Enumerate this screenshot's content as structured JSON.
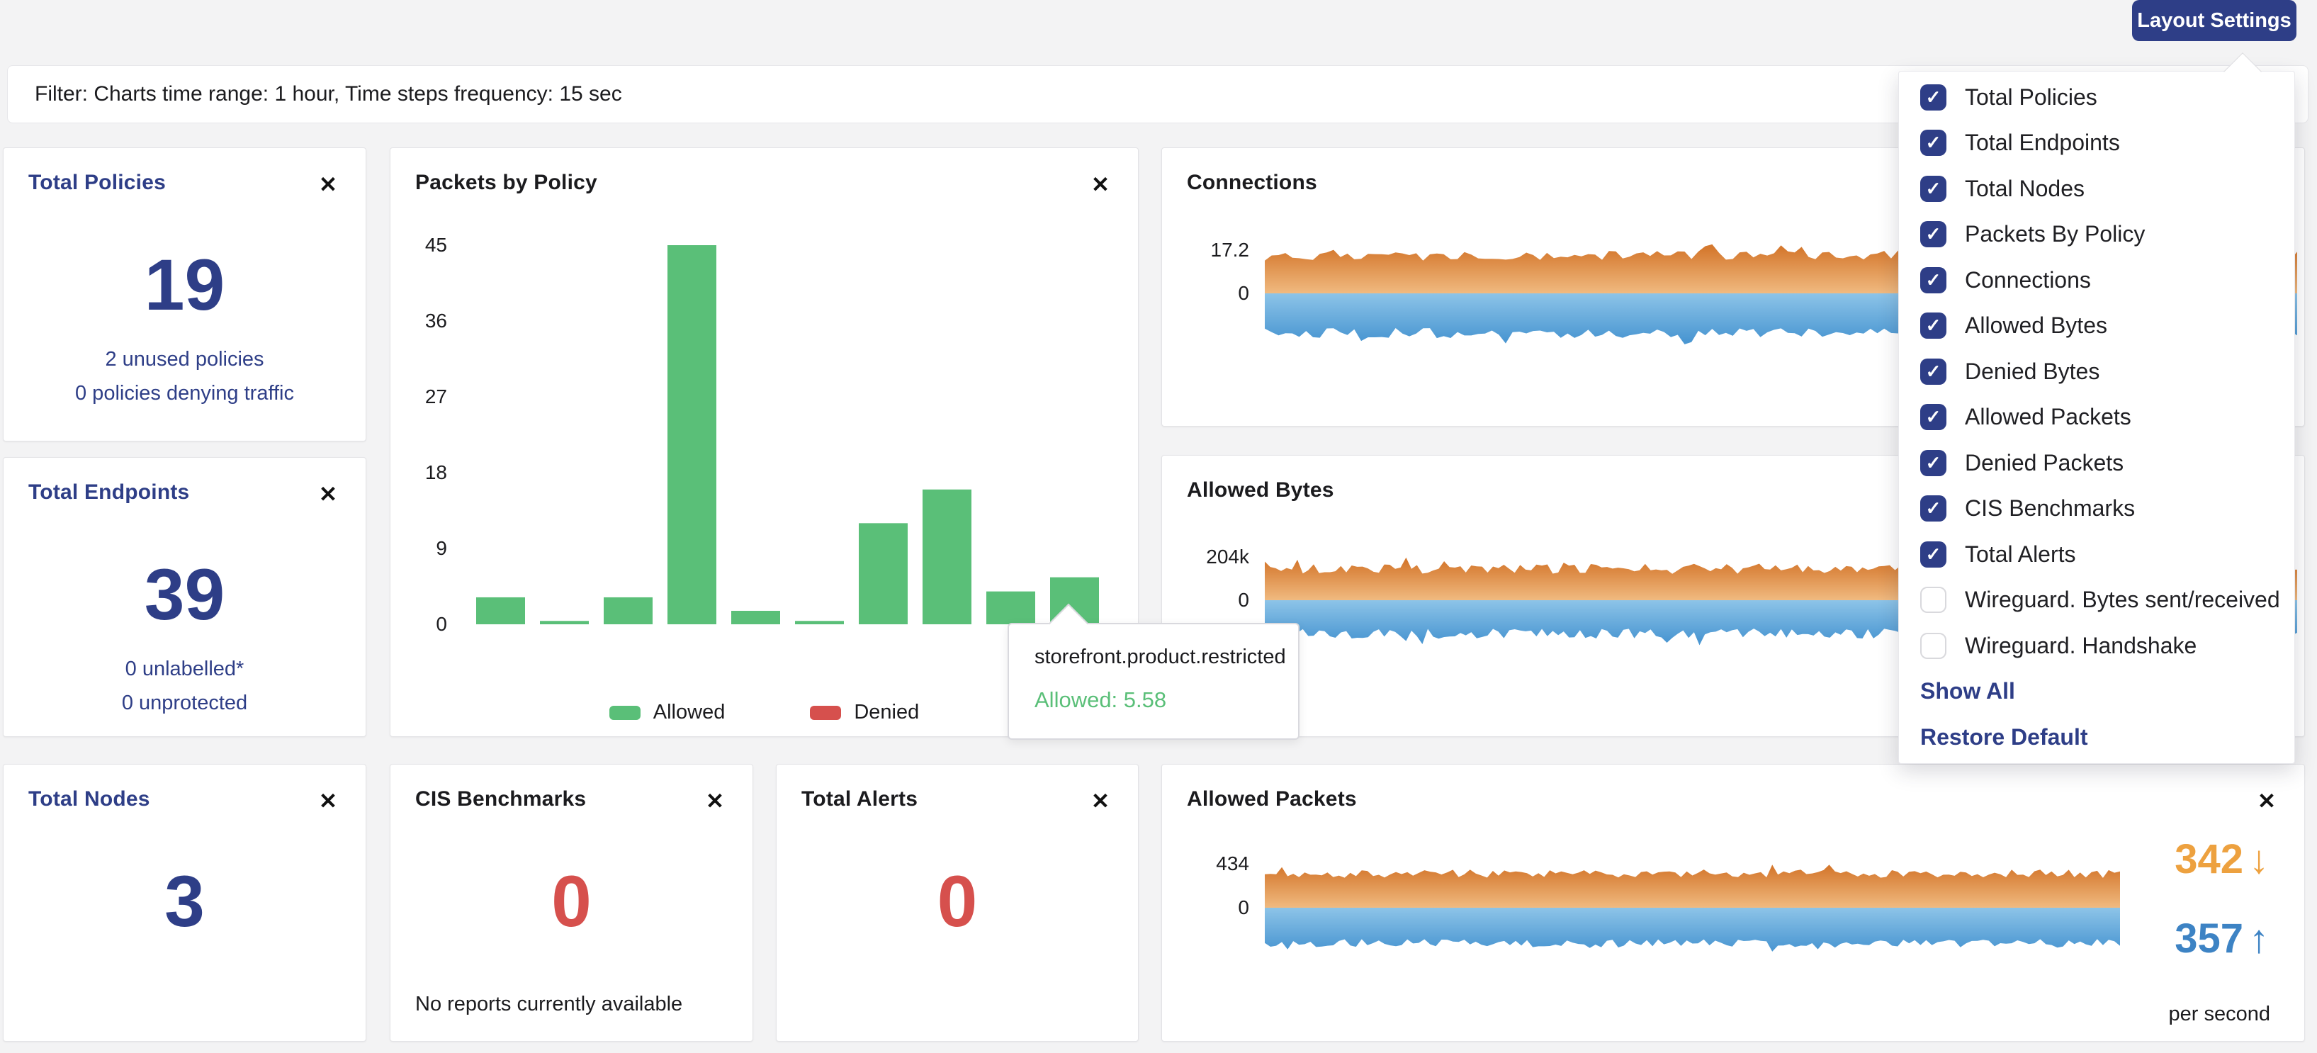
{
  "header": {
    "layout_settings_label": "Layout Settings"
  },
  "filter_bar": {
    "text": "Filter: Charts time range: 1 hour, Time steps frequency: 15 sec"
  },
  "icons": {
    "close": "✕",
    "check": "✓",
    "arrow_down": "↓",
    "arrow_up": "↑"
  },
  "colors": {
    "navy": "#2e3e87",
    "red": "#d6504d",
    "green": "#5abf78",
    "stat_orange": "#eda13f",
    "stat_blue": "#3d83c4",
    "area_orange_top": "#d5792f",
    "area_orange_zero": "#f0ba80",
    "area_blue_zero": "#8dc4e8",
    "area_blue_bottom": "#4b97d2"
  },
  "cards": {
    "total_policies": {
      "title": "Total Policies",
      "value": "19",
      "lines": [
        "2 unused policies",
        "0 policies denying traffic"
      ]
    },
    "total_endpoints": {
      "title": "Total Endpoints",
      "value": "39",
      "lines": [
        "0 unlabelled*",
        "0 unprotected"
      ]
    },
    "total_nodes": {
      "title": "Total Nodes",
      "value": "3"
    },
    "cis_benchmarks": {
      "title": "CIS Benchmarks",
      "value": "0",
      "note": "No reports currently available"
    },
    "total_alerts": {
      "title": "Total Alerts",
      "value": "0"
    },
    "packets_by_policy": {
      "title": "Packets by Policy"
    },
    "connections": {
      "title": "Connections"
    },
    "allowed_bytes": {
      "title": "Allowed Bytes"
    },
    "allowed_packets": {
      "title": "Allowed Packets"
    }
  },
  "layout_menu": {
    "items": [
      {
        "label": "Total Policies",
        "checked": true
      },
      {
        "label": "Total Endpoints",
        "checked": true
      },
      {
        "label": "Total Nodes",
        "checked": true
      },
      {
        "label": "Packets By Policy",
        "checked": true
      },
      {
        "label": "Connections",
        "checked": true
      },
      {
        "label": "Allowed Bytes",
        "checked": true
      },
      {
        "label": "Denied Bytes",
        "checked": true
      },
      {
        "label": "Allowed Packets",
        "checked": true
      },
      {
        "label": "Denied Packets",
        "checked": true
      },
      {
        "label": "CIS Benchmarks",
        "checked": true
      },
      {
        "label": "Total Alerts",
        "checked": true
      },
      {
        "label": "Wireguard. Bytes sent/received",
        "checked": false
      },
      {
        "label": "Wireguard. Handshake",
        "checked": false
      }
    ],
    "show_all_label": "Show All",
    "restore_default_label": "Restore Default"
  },
  "tooltip": {
    "title": "storefront.product.restricted",
    "line": "Allowed: 5.58"
  },
  "chart_data": [
    {
      "id": "packets_by_policy",
      "type": "bar",
      "title": "Packets by Policy",
      "y_ticks": [
        "0",
        "9",
        "18",
        "27",
        "36",
        "45"
      ],
      "ylim": [
        0,
        45
      ],
      "grid": false,
      "legend_position": "bottom",
      "series": [
        {
          "name": "Allowed",
          "color": "#5abf78",
          "values": [
            3.2,
            0.4,
            3.2,
            45,
            1.6,
            0.4,
            12,
            16,
            3.9,
            5.58
          ]
        },
        {
          "name": "Denied",
          "color": "#d6504d",
          "values": [
            0,
            0,
            0,
            0,
            0,
            0,
            0,
            0,
            0,
            0
          ]
        }
      ],
      "hovered_bar": {
        "index": 9,
        "policy": "storefront.product.restricted",
        "allowed": 5.58
      }
    },
    {
      "id": "connections",
      "type": "mirrored-area",
      "title": "Connections",
      "y_ticks": [
        "17.2",
        "0"
      ],
      "tick_value": 17.2,
      "sent": {
        "mean": 15.0,
        "noise": 2.0
      },
      "received": {
        "mean": 15.8,
        "noise": 2.0
      },
      "points": 150,
      "seed": 7
    },
    {
      "id": "allowed_bytes",
      "type": "mirrored-area",
      "title": "Allowed Bytes",
      "y_ticks": [
        "204k",
        "0"
      ],
      "tick_value": 204,
      "sent": {
        "mean": 148,
        "noise": 24
      },
      "received": {
        "mean": 158,
        "noise": 24
      },
      "points": 190,
      "seed": 13
    },
    {
      "id": "allowed_packets",
      "type": "mirrored-area",
      "title": "Allowed Packets",
      "y_ticks": [
        "434",
        "0"
      ],
      "tick_value": 434,
      "sent": {
        "mean": 336,
        "noise": 42
      },
      "received": {
        "mean": 352,
        "noise": 42
      },
      "points": 150,
      "seed": 21,
      "stats": {
        "down": "342",
        "up": "357",
        "unit": "per second"
      }
    }
  ]
}
